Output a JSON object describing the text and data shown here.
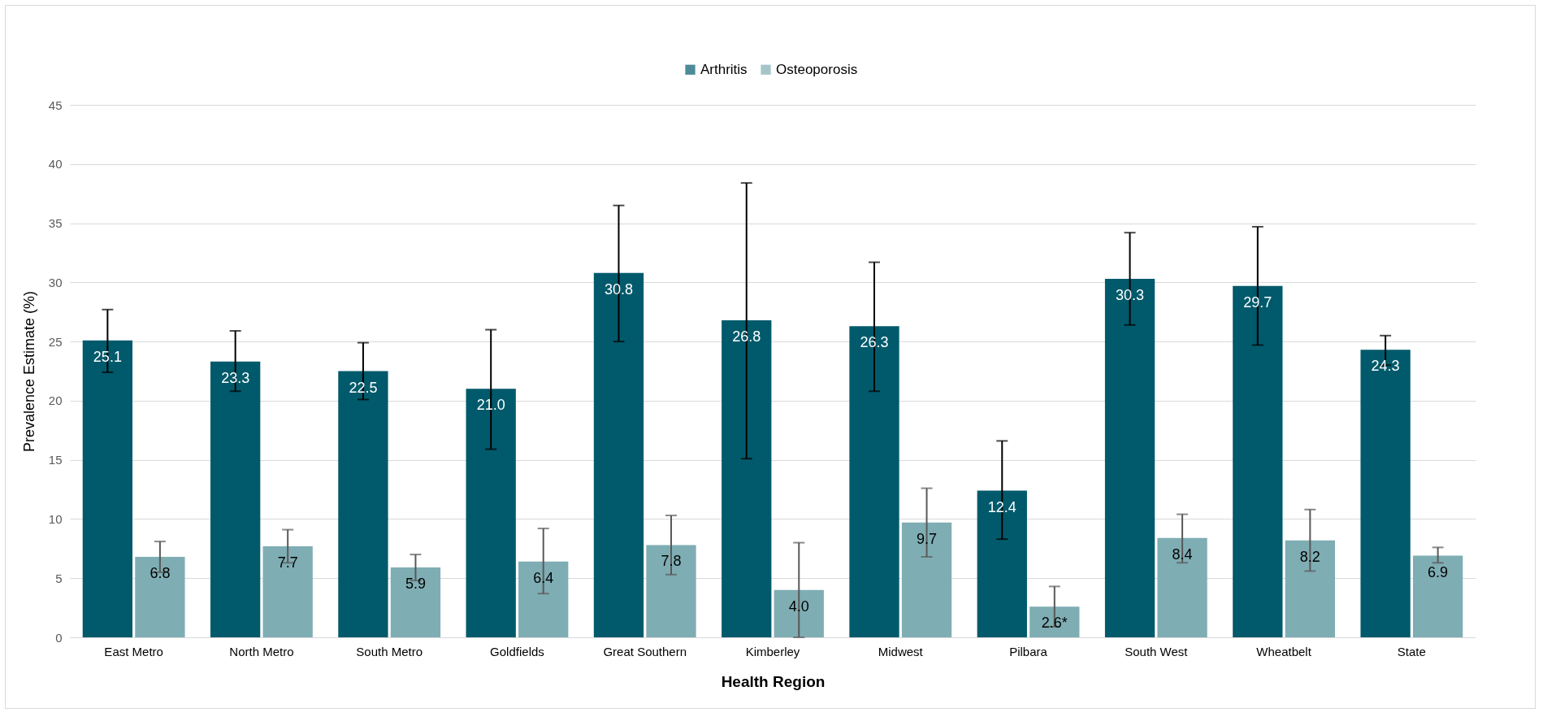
{
  "chart_data": {
    "type": "bar",
    "xlabel": "Health Region",
    "ylabel": "Prevalence Estimate (%)",
    "categories": [
      "East Metro",
      "North Metro",
      "South Metro",
      "Goldfields",
      "Great Southern",
      "Kimberley",
      "Midwest",
      "Pilbara",
      "South West",
      "Wheatbelt",
      "State"
    ],
    "series": [
      {
        "name": "Arthritis",
        "color": "#005a6b",
        "values": [
          25.1,
          23.3,
          22.5,
          21.0,
          30.8,
          26.8,
          26.3,
          12.4,
          30.3,
          29.7,
          24.3
        ],
        "value_labels": [
          "25.1",
          "23.3",
          "22.5",
          "21.0",
          "30.8",
          "26.8",
          "26.3",
          "12.4",
          "30.3",
          "29.7",
          "24.3"
        ],
        "errors": [
          [
            22.4,
            27.7
          ],
          [
            20.8,
            25.9
          ],
          [
            20.1,
            24.9
          ],
          [
            15.9,
            26.0
          ],
          [
            25.0,
            36.5
          ],
          [
            15.1,
            38.4
          ],
          [
            20.8,
            31.7
          ],
          [
            8.3,
            16.6
          ],
          [
            26.4,
            34.2
          ],
          [
            24.7,
            34.7
          ],
          [
            23.0,
            25.5
          ]
        ]
      },
      {
        "name": "Osteoporosis",
        "color": "#7fadb4",
        "values": [
          6.8,
          7.7,
          5.9,
          6.4,
          7.8,
          4.0,
          9.7,
          2.6,
          8.4,
          8.2,
          6.9
        ],
        "value_labels": [
          "6.8",
          "7.7",
          "5.9",
          "6.4",
          "7.8",
          "4.0",
          "9.7",
          "2.6*",
          "8.4",
          "8.2",
          "6.9"
        ],
        "errors": [
          [
            5.5,
            8.1
          ],
          [
            6.3,
            9.1
          ],
          [
            4.8,
            7.0
          ],
          [
            3.7,
            9.2
          ],
          [
            5.3,
            10.3
          ],
          [
            0.0,
            8.0
          ],
          [
            6.8,
            12.6
          ],
          [
            0.9,
            4.3
          ],
          [
            6.3,
            10.4
          ],
          [
            5.6,
            10.8
          ],
          [
            6.3,
            7.6
          ]
        ]
      }
    ],
    "ylim": [
      0,
      45
    ],
    "yticks": [
      0,
      5,
      10,
      15,
      20,
      25,
      30,
      35,
      40,
      45
    ],
    "grid": "y",
    "legend": "top"
  }
}
